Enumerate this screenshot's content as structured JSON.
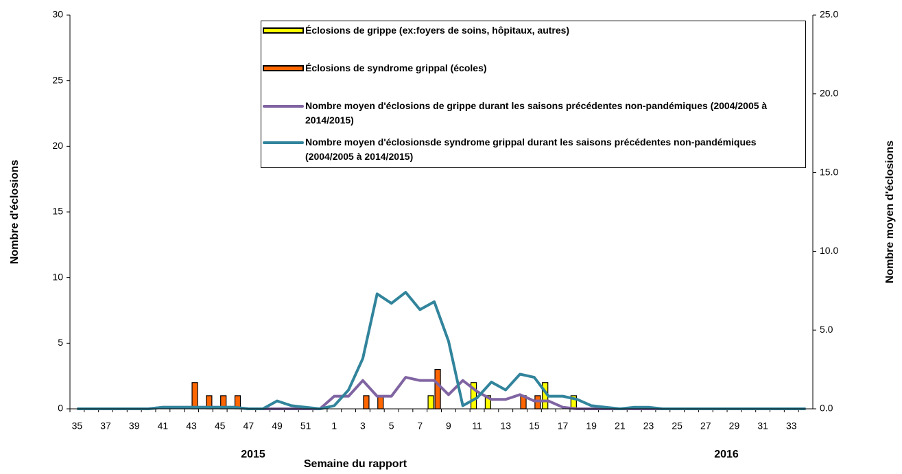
{
  "chart_data": {
    "type": "bar",
    "x_label": "Semaine du rapport",
    "y_label": "Nombre d'éclosions",
    "y2_label": "Nombre moyen d'éclosions",
    "annotations": [
      "2015",
      "2016"
    ],
    "categories": [
      "35",
      null,
      "37",
      null,
      "39",
      null,
      "41",
      null,
      "43",
      null,
      "45",
      null,
      "47",
      null,
      "49",
      null,
      "51",
      null,
      "1",
      null,
      "3",
      null,
      "5",
      null,
      "7",
      null,
      "9",
      null,
      "11",
      null,
      "13",
      null,
      "15",
      null,
      "17",
      null,
      "19",
      null,
      "21",
      null,
      "23",
      null,
      "25",
      null,
      "27",
      null,
      "29",
      null,
      "31",
      null,
      "33",
      null
    ],
    "ylim": [
      0,
      30
    ],
    "yticks": [
      0,
      5,
      10,
      15,
      20,
      25,
      30
    ],
    "y2lim": [
      0,
      25
    ],
    "y2ticks": [
      {
        "value": 0,
        "label": "0.0"
      },
      {
        "value": 5,
        "label": "5.0"
      },
      {
        "value": 10,
        "label": "10.0"
      },
      {
        "value": 15,
        "label": "15.0"
      },
      {
        "value": 20,
        "label": "20.0"
      },
      {
        "value": 25,
        "label": "25.0"
      }
    ],
    "series": [
      {
        "name": "Éclosions de grippe (ex:foyers de soins, hôpitaux, autres)",
        "type": "bar",
        "color": "#ffff00",
        "values": [
          0,
          0,
          0,
          0,
          0,
          0,
          0,
          0,
          0,
          0,
          0,
          0,
          0,
          0,
          0,
          0,
          0,
          0,
          0,
          0,
          0,
          0,
          0,
          0,
          0,
          1,
          0,
          0,
          2,
          1,
          0,
          0,
          0,
          2,
          0,
          1,
          0,
          0,
          0,
          0,
          0,
          0,
          0,
          0,
          0,
          0,
          0,
          0,
          0,
          0,
          0,
          0
        ]
      },
      {
        "name": "Éclosions de syndrome grippal (écoles)",
        "type": "bar",
        "color": "#ff6600",
        "values": [
          0,
          0,
          0,
          0,
          0,
          0,
          0,
          0,
          2,
          1,
          1,
          1,
          0,
          0,
          0,
          0,
          0,
          0,
          0,
          0,
          1,
          1,
          0,
          0,
          0,
          3,
          0,
          0,
          0,
          0,
          0,
          1,
          1,
          0,
          0,
          0,
          0,
          0,
          0,
          0,
          0,
          0,
          0,
          0,
          0,
          0,
          0,
          0,
          0,
          0,
          0,
          0
        ]
      },
      {
        "name": "Nombre moyen d'éclosions de grippe durant les saisons précédentes non-pandémiques (2004/2005 à 2014/2015)",
        "type": "line",
        "axis": "y2",
        "color": "#8064a2",
        "values": [
          0,
          0,
          0,
          0,
          0,
          0,
          0.1,
          0.1,
          0.1,
          0.1,
          0.1,
          0.1,
          0,
          0,
          0,
          0,
          0,
          0,
          0.8,
          0.8,
          1.8,
          0.8,
          0.8,
          2,
          1.8,
          1.8,
          0.9,
          1.8,
          1.1,
          0.6,
          0.6,
          0.9,
          0.5,
          0.5,
          0.1,
          0,
          0,
          0,
          0,
          0,
          0,
          0,
          0,
          0,
          0,
          0,
          0,
          0,
          0,
          0,
          0,
          0
        ]
      },
      {
        "name": "Nombre moyen d'éclosionsde syndrome grippal  durant les saisons précédentes non-pandémiques (2004/2005 à 2014/2015)",
        "type": "line",
        "axis": "y2",
        "color": "#31849b",
        "values": [
          0,
          0,
          0,
          0,
          0,
          0,
          0.1,
          0.1,
          0.1,
          0.1,
          0.1,
          0.1,
          0,
          0,
          0.5,
          0.2,
          0.1,
          0,
          0.2,
          1.2,
          3.2,
          7.3,
          6.7,
          7.4,
          6.3,
          6.8,
          4.3,
          0.2,
          0.7,
          1.7,
          1.2,
          2.2,
          2,
          0.8,
          0.8,
          0.6,
          0.2,
          0.1,
          0,
          0.1,
          0.1,
          0,
          0,
          0,
          0,
          0,
          0,
          0,
          0,
          0,
          0,
          0
        ]
      }
    ]
  }
}
